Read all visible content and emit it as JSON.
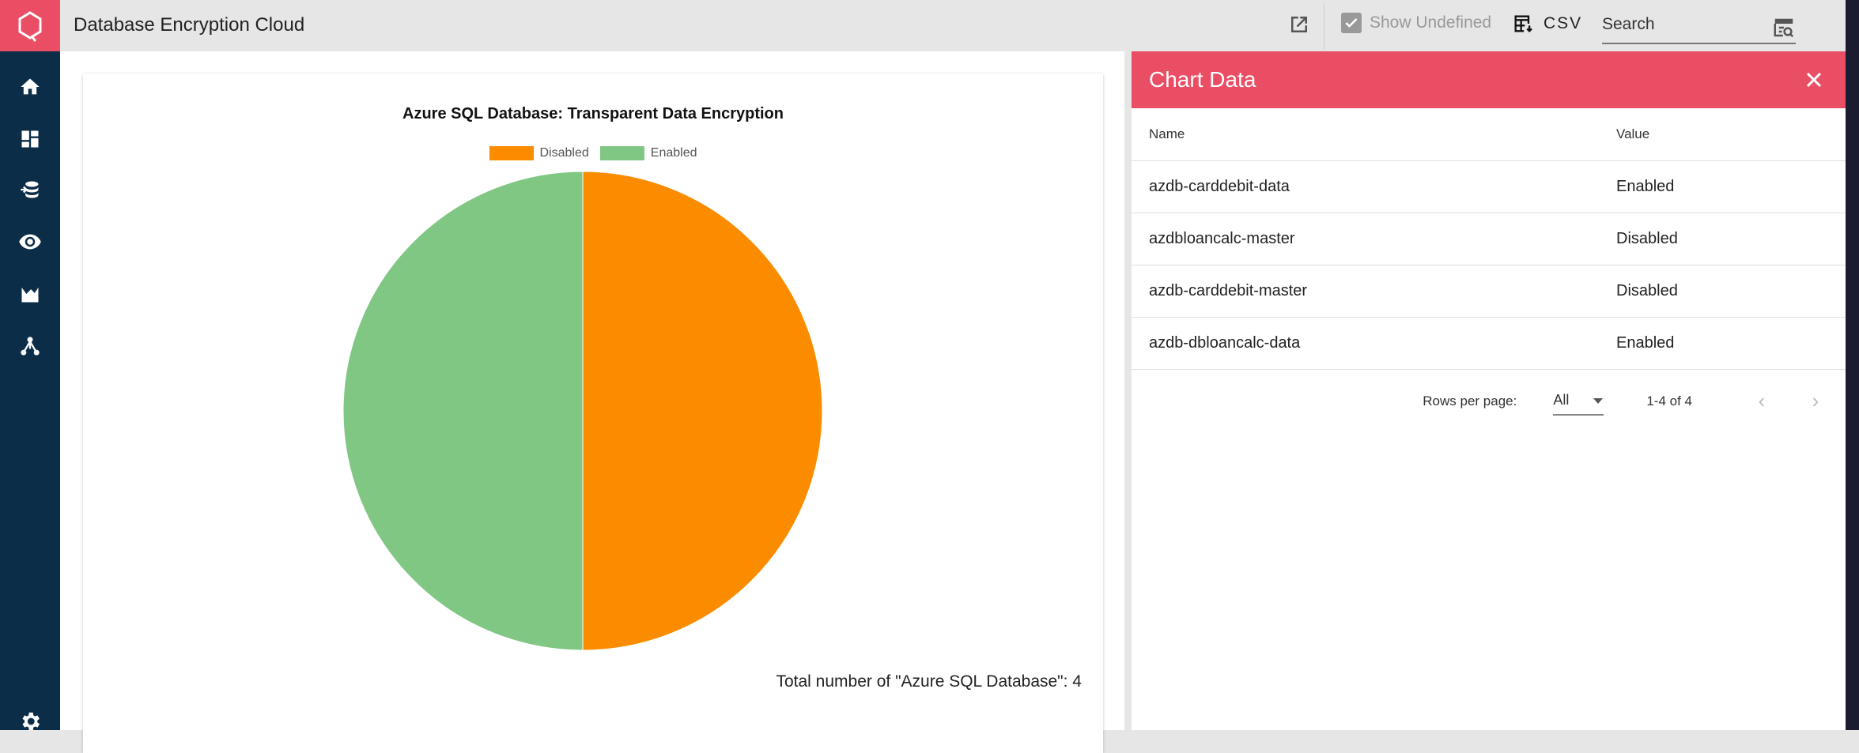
{
  "app": {
    "title": "Database Encryption Cloud",
    "brand_color": "#e94e64",
    "sidebar_color": "#0c2d48"
  },
  "sidebar": {
    "items": [
      {
        "icon": "home-icon"
      },
      {
        "icon": "dashboard-icon"
      },
      {
        "icon": "database-icon"
      },
      {
        "icon": "eye-icon"
      },
      {
        "icon": "area-chart-icon"
      },
      {
        "icon": "network-icon"
      },
      {
        "icon": "gear-icon"
      }
    ]
  },
  "toolbar": {
    "show_undefined_label": "Show Undefined",
    "show_undefined_checked": true,
    "csv_label": "CSV",
    "search_placeholder": "Search"
  },
  "chart_data": {
    "type": "pie",
    "title": "Azure SQL Database: Transparent Data Encryption",
    "categories": [
      "Disabled",
      "Enabled"
    ],
    "values": [
      2,
      2
    ],
    "colors": [
      "#fb8c00",
      "#81c784"
    ],
    "legend": "top",
    "footer": "Total number of \"Azure SQL Database\": 4"
  },
  "panel": {
    "title": "Chart Data",
    "columns": [
      "Name",
      "Value"
    ],
    "rows": [
      [
        "azdb-carddebit-data",
        "Enabled"
      ],
      [
        "azdbloancalc-master",
        "Disabled"
      ],
      [
        "azdb-carddebit-master",
        "Disabled"
      ],
      [
        "azdb-dbloancalc-data",
        "Enabled"
      ]
    ],
    "rows_per_page_label": "Rows per page:",
    "rows_per_page_value": "All",
    "range": "1-4 of 4"
  }
}
